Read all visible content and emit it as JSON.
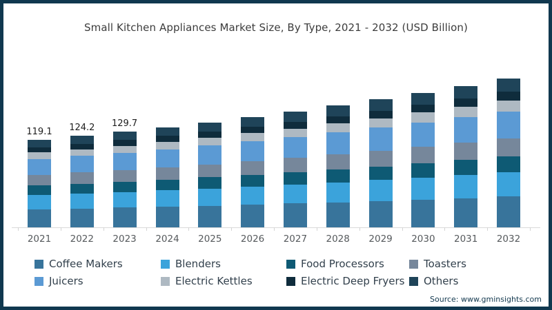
{
  "header": {
    "title": "Small Kitchen Appliances Market Size, By Type, 2021 - 2032 (USD Billion)"
  },
  "chart_data": {
    "type": "bar",
    "stacked": true,
    "title": "Small Kitchen Appliances Market Size, By Type, 2021 - 2032 (USD Billion)",
    "xlabel": "",
    "ylabel": "",
    "value_axis_visible": false,
    "legend_position": "bottom",
    "categories": [
      "2021",
      "2022",
      "2023",
      "2024",
      "2025",
      "2026",
      "2027",
      "2028",
      "2029",
      "2030",
      "2031",
      "2032"
    ],
    "bar_value_labels": [
      "119.1",
      "124.2",
      "129.7",
      "",
      "",
      "",
      "",
      "",
      "",
      "",
      "",
      ""
    ],
    "totals_usd_billion": [
      119.1,
      124.2,
      129.7,
      135.8,
      142.4,
      149.5,
      157.0,
      165.0,
      173.4,
      182.3,
      191.7,
      201.6
    ],
    "series": [
      {
        "name": "Coffee Makers",
        "color": "#38749B",
        "values": [
          24.5,
          25.6,
          26.7,
          28.0,
          29.4,
          30.9,
          32.4,
          34.1,
          35.8,
          37.7,
          39.6,
          41.7
        ]
      },
      {
        "name": "Blenders",
        "color": "#3BA3DB",
        "values": [
          19.5,
          20.3,
          21.2,
          22.2,
          23.3,
          24.5,
          25.7,
          27.0,
          28.4,
          29.8,
          31.4,
          33.0
        ]
      },
      {
        "name": "Food Processors",
        "color": "#0E5A74",
        "values": [
          12.8,
          13.3,
          13.9,
          14.5,
          15.2,
          15.9,
          16.7,
          17.6,
          18.5,
          19.4,
          20.4,
          21.5
        ]
      },
      {
        "name": "Toasters",
        "color": "#76879B",
        "values": [
          14.6,
          15.2,
          15.9,
          16.6,
          17.4,
          18.3,
          19.2,
          20.2,
          21.2,
          22.3,
          23.5,
          24.7
        ]
      },
      {
        "name": "Juicers",
        "color": "#5B9AD4",
        "values": [
          21.5,
          22.4,
          23.4,
          24.5,
          25.7,
          27.0,
          28.3,
          29.8,
          31.3,
          32.9,
          34.6,
          36.4
        ]
      },
      {
        "name": "Electric Kettles",
        "color": "#AEB9C2",
        "values": [
          8.8,
          9.2,
          9.6,
          10.1,
          10.6,
          11.1,
          11.7,
          12.3,
          12.9,
          13.6,
          14.3,
          15.0
        ]
      },
      {
        "name": "Electric Deep Fryers",
        "color": "#0F2C3C",
        "values": [
          7.0,
          7.3,
          7.6,
          8.0,
          8.3,
          8.7,
          9.2,
          9.6,
          10.1,
          10.6,
          11.1,
          11.7
        ]
      },
      {
        "name": "Others",
        "color": "#1F4459",
        "values": [
          10.4,
          10.9,
          11.4,
          11.9,
          12.5,
          13.1,
          13.8,
          14.4,
          15.2,
          16.0,
          16.8,
          17.6
        ]
      }
    ]
  },
  "source": {
    "text": "Source: www.gminsights.com"
  },
  "colors": {
    "frame_border": "#10384F",
    "background": "#ffffff",
    "axis_line": "#d9d9d9",
    "title_text": "#3c3c3c",
    "axis_label_text": "#55595c",
    "legend_text": "#32404c",
    "value_label_text": "#1d1d1d",
    "source_text": "#12384e"
  }
}
